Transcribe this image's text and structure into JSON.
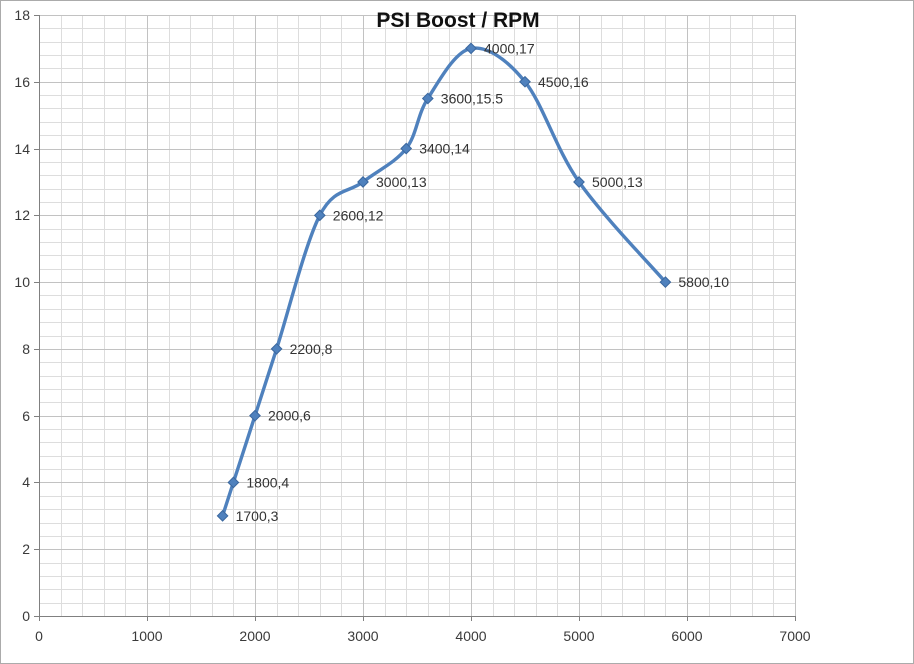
{
  "chart_data": {
    "type": "line",
    "title": "PSI Boost / RPM",
    "legend": "none",
    "series": [
      {
        "name": "PSI Boost",
        "smooth": true,
        "marker": "diamond",
        "points": [
          {
            "x": 1700,
            "y": 3,
            "label": "1700,3"
          },
          {
            "x": 1800,
            "y": 4,
            "label": "1800,4"
          },
          {
            "x": 2000,
            "y": 6,
            "label": "2000,6"
          },
          {
            "x": 2200,
            "y": 8,
            "label": "2200,8"
          },
          {
            "x": 2600,
            "y": 12,
            "label": "2600,12"
          },
          {
            "x": 3000,
            "y": 13,
            "label": "3000,13"
          },
          {
            "x": 3400,
            "y": 14,
            "label": "3400,14"
          },
          {
            "x": 3600,
            "y": 15.5,
            "label": "3600,15.5"
          },
          {
            "x": 4000,
            "y": 17,
            "label": "4000,17"
          },
          {
            "x": 4500,
            "y": 16,
            "label": "4500,16"
          },
          {
            "x": 5000,
            "y": 13,
            "label": "5000,13"
          },
          {
            "x": 5800,
            "y": 10,
            "label": "5800,10"
          }
        ]
      }
    ],
    "x_axis": {
      "min": 0,
      "max": 7000,
      "major_step": 1000,
      "minor_step": 200,
      "tick_labels": [
        "0",
        "1000",
        "2000",
        "3000",
        "4000",
        "5000",
        "6000",
        "7000"
      ]
    },
    "y_axis": {
      "min": 0,
      "max": 18,
      "major_step": 2,
      "minor_step": 0.4,
      "tick_labels": [
        "0",
        "2",
        "4",
        "6",
        "8",
        "10",
        "12",
        "14",
        "16",
        "18"
      ]
    },
    "grid": {
      "major": true,
      "minor": true
    },
    "colors": {
      "line": "#4F81BD",
      "marker_fill": "#4F81BD",
      "marker_edge": "#3A679E",
      "major_grid": "#C2C2C2",
      "minor_grid": "#DDDDDD",
      "axis": "#808080",
      "tick_text": "#3A3A3A",
      "label_text": "#333333",
      "title_text": "#111111"
    }
  }
}
